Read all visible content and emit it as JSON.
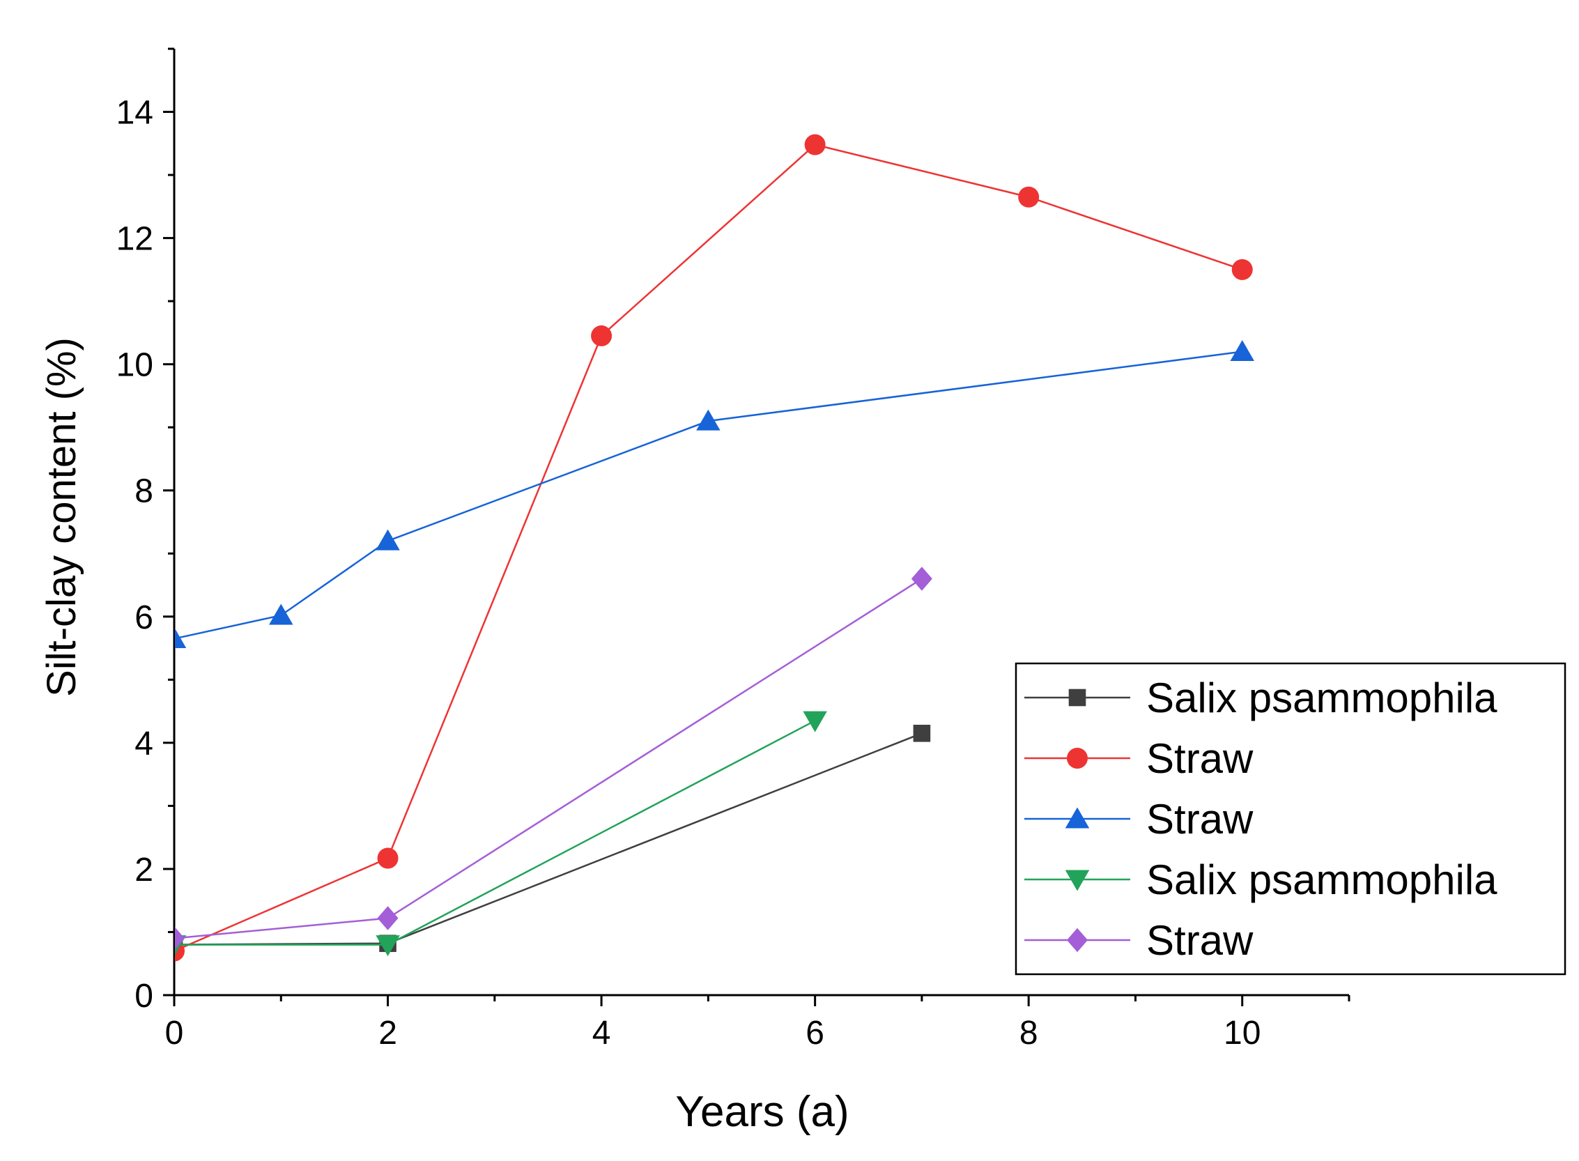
{
  "chart_data": {
    "type": "line",
    "title": "",
    "xlabel": "Years (a)",
    "ylabel": "Silt-clay content (%)",
    "xlim": [
      0,
      11
    ],
    "ylim": [
      0,
      15
    ],
    "x_major_ticks": [
      0,
      2,
      4,
      6,
      8,
      10
    ],
    "x_minor_ticks": [
      1,
      3,
      5,
      7,
      9,
      11
    ],
    "y_major_ticks": [
      0,
      2,
      4,
      6,
      8,
      10,
      12,
      14
    ],
    "y_minor_ticks": [
      1,
      3,
      5,
      7,
      9,
      11,
      13,
      15
    ],
    "grid": false,
    "legend_position": "right",
    "series": [
      {
        "name": "Salix psammophila",
        "marker": "square",
        "color": "#3f3f3f",
        "x": [
          0,
          2,
          7
        ],
        "y": [
          0.8,
          0.82,
          4.15
        ]
      },
      {
        "name": "Straw",
        "marker": "circle",
        "color": "#ee3333",
        "x": [
          0,
          2,
          4,
          6,
          8,
          10
        ],
        "y": [
          0.7,
          2.17,
          10.45,
          13.48,
          12.65,
          11.5
        ]
      },
      {
        "name": "Straw",
        "marker": "triangle-up",
        "color": "#1763d8",
        "x": [
          0,
          1,
          2,
          5,
          10
        ],
        "y": [
          5.65,
          6.02,
          7.2,
          9.1,
          10.2
        ]
      },
      {
        "name": "Salix psammophila",
        "marker": "triangle-down",
        "color": "#22a35a",
        "x": [
          0,
          2,
          6
        ],
        "y": [
          0.8,
          0.8,
          4.35
        ]
      },
      {
        "name": "Straw",
        "marker": "diamond",
        "color": "#a35ed8",
        "x": [
          0,
          2,
          7
        ],
        "y": [
          0.9,
          1.22,
          6.6
        ]
      }
    ]
  }
}
